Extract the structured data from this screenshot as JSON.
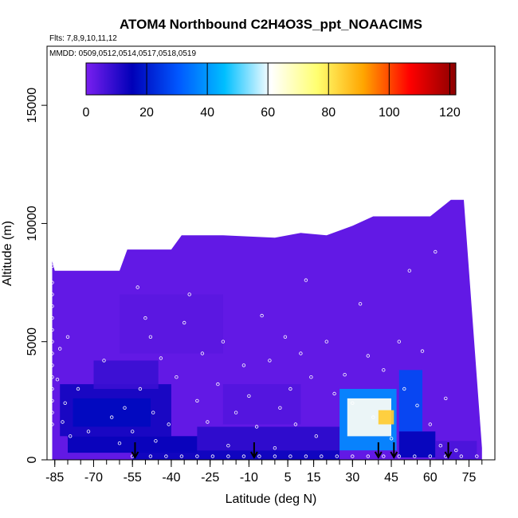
{
  "chart_data": {
    "type": "heatmap",
    "title": "ATOM4 Northbound C2H4O3S_ppt_NOAACIMS",
    "subtitle_flights": "Flts: 7,8,9,10,11,12",
    "subtitle_dates": "MMDD: 0509,0512,0514,0517,0518,0519",
    "xlabel": "Latitude (deg N)",
    "ylabel": "Altitude (m)",
    "xlim": [
      -88,
      85
    ],
    "ylim": [
      0,
      17500
    ],
    "x_ticks": [
      -85,
      -70,
      -55,
      -40,
      -25,
      -10,
      5,
      15,
      30,
      45,
      60,
      75
    ],
    "x_tick_labels": [
      "-85",
      "-70",
      "-55",
      "-40",
      "-25",
      "-10",
      "5",
      "15",
      "30",
      "45",
      "60",
      "75"
    ],
    "y_ticks": [
      0,
      5000,
      10000,
      15000
    ],
    "y_tick_labels": [
      "0",
      "5000",
      "10000",
      "15000"
    ],
    "colorbar": {
      "min": 0,
      "max": 122,
      "ticks": [
        0,
        20,
        40,
        60,
        80,
        100,
        120
      ],
      "tick_labels": [
        "0",
        "20",
        "40",
        "60",
        "80",
        "100",
        "120"
      ],
      "colors": [
        "#7a1ff0",
        "#0000b8",
        "#0058ff",
        "#00bfff",
        "#ffffff",
        "#ffff70",
        "#ffa500",
        "#ff0000",
        "#8b0000"
      ]
    },
    "profile_top": [
      [
        -86,
        8400
      ],
      [
        -85,
        8000
      ],
      [
        -75,
        8000
      ],
      [
        -60,
        8000
      ],
      [
        -57,
        8900
      ],
      [
        -40,
        8900
      ],
      [
        -36,
        9500
      ],
      [
        -20,
        9500
      ],
      [
        0,
        9400
      ],
      [
        10,
        9600
      ],
      [
        20,
        9500
      ],
      [
        30,
        9900
      ],
      [
        38,
        10300
      ],
      [
        60,
        10300
      ],
      [
        68,
        11000
      ],
      [
        73,
        11000
      ]
    ],
    "profile_bottom_right": [
      [
        73,
        11000
      ],
      [
        80,
        500
      ],
      [
        80,
        0
      ]
    ],
    "enhanced_regions": [
      {
        "lat": [
          -83,
          -40
        ],
        "alt": [
          1000,
          3200
        ],
        "value": 13
      },
      {
        "lat": [
          -78,
          -48
        ],
        "alt": [
          1400,
          2600
        ],
        "value": 17
      },
      {
        "lat": [
          -70,
          -45
        ],
        "alt": [
          3000,
          4200
        ],
        "value": 8
      },
      {
        "lat": [
          -80,
          -30
        ],
        "alt": [
          300,
          1000
        ],
        "value": 15
      },
      {
        "lat": [
          -55,
          25
        ],
        "alt": [
          0,
          400
        ],
        "value": 14
      },
      {
        "lat": [
          -30,
          25
        ],
        "alt": [
          400,
          1400
        ],
        "value": 10
      },
      {
        "lat": [
          25,
          47
        ],
        "alt": [
          400,
          3000
        ],
        "value": 38
      },
      {
        "lat": [
          28,
          45
        ],
        "alt": [
          1000,
          2600
        ],
        "value": 62
      },
      {
        "lat": [
          40,
          46
        ],
        "alt": [
          1500,
          2100
        ],
        "value": 85
      },
      {
        "lat": [
          48,
          57
        ],
        "alt": [
          1200,
          3800
        ],
        "value": 28
      },
      {
        "lat": [
          48,
          62
        ],
        "alt": [
          100,
          1200
        ],
        "value": 16
      },
      {
        "lat": [
          -20,
          10
        ],
        "alt": [
          1500,
          3200
        ],
        "value": 5
      },
      {
        "lat": [
          62,
          78
        ],
        "alt": [
          0,
          800
        ],
        "value": 6
      },
      {
        "lat": [
          -60,
          -20
        ],
        "alt": [
          4500,
          7000
        ],
        "value": 4
      }
    ],
    "flight_arrows_lat": [
      -54,
      -8,
      40,
      46,
      67
    ],
    "sample_points": [
      [
        -86,
        8200
      ],
      [
        -86,
        7500
      ],
      [
        -86,
        7000
      ],
      [
        -86,
        6500
      ],
      [
        -86,
        6000
      ],
      [
        -86,
        5500
      ],
      [
        -86,
        5000
      ],
      [
        -86,
        4500
      ],
      [
        -86,
        4000
      ],
      [
        -86,
        3500
      ],
      [
        -86,
        3000
      ],
      [
        -86,
        2500
      ],
      [
        -86,
        2000
      ],
      [
        -86,
        1500
      ],
      [
        -84,
        3400
      ],
      [
        -83,
        4700
      ],
      [
        -82,
        1600
      ],
      [
        -81,
        2400
      ],
      [
        -80,
        5200
      ],
      [
        -79,
        1000
      ],
      [
        -76,
        3000
      ],
      [
        -72,
        1200
      ],
      [
        -66,
        4200
      ],
      [
        -63,
        1800
      ],
      [
        -60,
        700
      ],
      [
        -58,
        2200
      ],
      [
        -55,
        1200
      ],
      [
        -53,
        7300
      ],
      [
        -52,
        3000
      ],
      [
        -50,
        6000
      ],
      [
        -48,
        5200
      ],
      [
        -47,
        2000
      ],
      [
        -46,
        800
      ],
      [
        -44,
        4300
      ],
      [
        -41,
        1500
      ],
      [
        -38,
        3500
      ],
      [
        -35,
        5800
      ],
      [
        -33,
        7000
      ],
      [
        -30,
        2500
      ],
      [
        -28,
        4500
      ],
      [
        -26,
        1600
      ],
      [
        -22,
        3200
      ],
      [
        -20,
        5000
      ],
      [
        -18,
        600
      ],
      [
        -15,
        2000
      ],
      [
        -12,
        4000
      ],
      [
        -10,
        2700
      ],
      [
        -7,
        1400
      ],
      [
        -5,
        6100
      ],
      [
        -2,
        4200
      ],
      [
        0,
        500
      ],
      [
        2,
        2200
      ],
      [
        4,
        5200
      ],
      [
        6,
        3000
      ],
      [
        8,
        1500
      ],
      [
        10,
        4500
      ],
      [
        12,
        7600
      ],
      [
        14,
        3500
      ],
      [
        16,
        1000
      ],
      [
        20,
        5000
      ],
      [
        23,
        2800
      ],
      [
        27,
        3600
      ],
      [
        30,
        2400
      ],
      [
        33,
        6600
      ],
      [
        36,
        4400
      ],
      [
        38,
        1800
      ],
      [
        42,
        3800
      ],
      [
        45,
        900
      ],
      [
        48,
        5000
      ],
      [
        50,
        3000
      ],
      [
        52,
        8000
      ],
      [
        55,
        2300
      ],
      [
        57,
        4600
      ],
      [
        60,
        1500
      ],
      [
        62,
        8800
      ],
      [
        64,
        600
      ],
      [
        66,
        2600
      ],
      [
        70,
        400
      ]
    ],
    "surface_points_lat": [
      -55,
      -48,
      -42,
      -36,
      -30,
      -24,
      -18,
      -12,
      -6,
      0,
      6,
      12,
      18,
      24,
      30,
      36,
      42,
      48,
      54,
      60,
      66,
      72,
      78
    ]
  }
}
